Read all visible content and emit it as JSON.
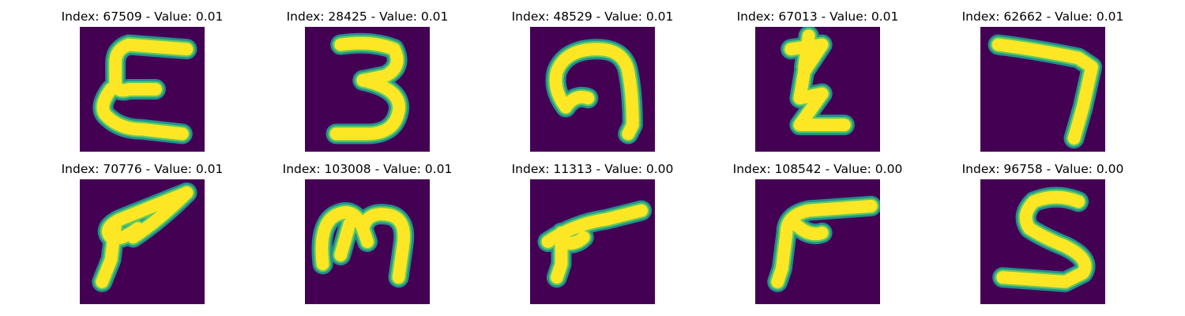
{
  "colors": {
    "background_fill": "#440154",
    "stroke_edge": "#21918c",
    "stroke_core": "#fde725",
    "stroke_mid": "#5ec962"
  },
  "grid": [
    {
      "title": "Index: 67509 - Value: 0.01",
      "glyph": "letter E (handwritten)"
    },
    {
      "title": "Index: 28425 - Value: 0.01",
      "glyph": "digit 3 (handwritten)"
    },
    {
      "title": "Index: 48529 - Value: 0.01",
      "glyph": "curled arch shape"
    },
    {
      "title": "Index: 67013 - Value: 0.01",
      "glyph": "zigzag Z-like shape"
    },
    {
      "title": "Index: 62662 - Value: 0.01",
      "glyph": "digit 7 (handwritten)"
    },
    {
      "title": "Index: 70776 - Value: 0.01",
      "glyph": "slanted P-like shape"
    },
    {
      "title": "Index: 103008 - Value: 0.01",
      "glyph": "m-like shape"
    },
    {
      "title": "Index: 11313 - Value: 0.00",
      "glyph": "r-like shape"
    },
    {
      "title": "Index: 108542 - Value: 0.00",
      "glyph": "reversed L / r shape"
    },
    {
      "title": "Index: 96758 - Value: 0.00",
      "glyph": "digit 5 (handwritten)"
    }
  ]
}
